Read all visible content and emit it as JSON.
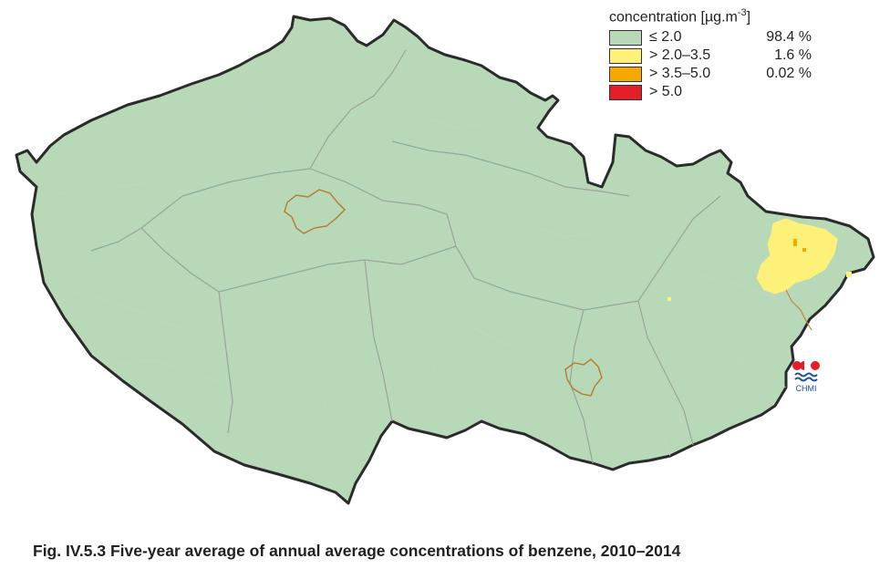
{
  "map": {
    "colors": {
      "land": "#b7d9b8",
      "border": "#2b2b2b",
      "region_lines": "#9aa39a",
      "district_lines": "#c6d6c6",
      "city_outline": "#b8792a",
      "river_line": "#c9853a"
    }
  },
  "legend": {
    "title_text": "concentration [µg.m",
    "title_exponent": "-3",
    "title_close": "]",
    "items": [
      {
        "label": "≤ 2.0",
        "percent": "98.4 %",
        "color": "#b7d9b8"
      },
      {
        "label": "> 2.0–3.5",
        "percent": "1.6 %",
        "color": "#fef17a"
      },
      {
        "label": "> 3.5–5.0",
        "percent": "0.02 %",
        "color": "#f6a800"
      },
      {
        "label": "> 5.0",
        "percent": "",
        "color": "#e41e26"
      }
    ]
  },
  "logo": {
    "text": "CHMI",
    "icon": "chmi-logo"
  },
  "caption": "Fig. IV.5.3  Five-year average of annual average concentrations of benzene, 2010–2014"
}
